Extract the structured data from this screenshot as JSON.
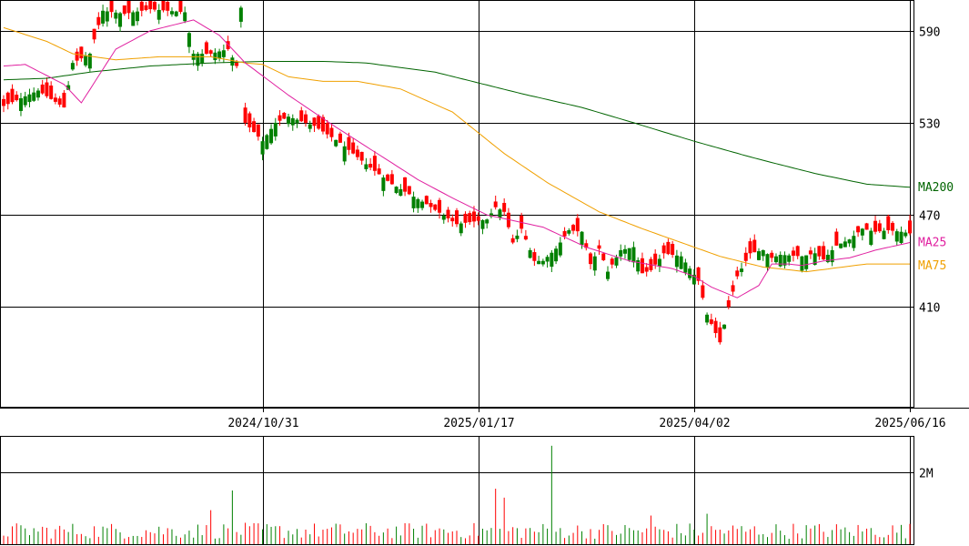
{
  "colors": {
    "up": "#008000",
    "down": "#ff0000",
    "ma25": "#e020a0",
    "ma75": "#f0a000",
    "ma200": "#006400",
    "grid": "#000000"
  },
  "chart_data": {
    "type": "candlestick",
    "price_axis": {
      "ylim": [
        345,
        610
      ],
      "ticks": [
        410,
        470,
        530,
        590
      ],
      "position": "right"
    },
    "x_axis_labels": [
      {
        "index": 60,
        "label": "2024/10/31"
      },
      {
        "index": 110,
        "label": "2025/01/17"
      },
      {
        "index": 160,
        "label": "2025/04/02"
      },
      {
        "index": 210,
        "label": "2025/06/16"
      }
    ],
    "legend": [
      {
        "name": "MA200",
        "color": "#006400"
      },
      {
        "name": "MA25",
        "color": "#e020a0"
      },
      {
        "name": "MA75",
        "color": "#f0a000"
      }
    ],
    "price_keypoints": [
      [
        0,
        541
      ],
      [
        8,
        551
      ],
      [
        14,
        540
      ],
      [
        16,
        569
      ],
      [
        20,
        575
      ],
      [
        23,
        603
      ],
      [
        28,
        601
      ],
      [
        34,
        604
      ],
      [
        42,
        602
      ],
      [
        44,
        575
      ],
      [
        48,
        575
      ],
      [
        52,
        578
      ],
      [
        54,
        567
      ],
      [
        55,
        605
      ],
      [
        56,
        530
      ],
      [
        60,
        518
      ],
      [
        63,
        530
      ],
      [
        66,
        534
      ],
      [
        72,
        528
      ],
      [
        78,
        517
      ],
      [
        84,
        503
      ],
      [
        90,
        490
      ],
      [
        98,
        477
      ],
      [
        105,
        464
      ],
      [
        112,
        467
      ],
      [
        114,
        475
      ],
      [
        116,
        472
      ],
      [
        118,
        452
      ],
      [
        120,
        461
      ],
      [
        123,
        440
      ],
      [
        125,
        440
      ],
      [
        128,
        448
      ],
      [
        131,
        460
      ],
      [
        134,
        459
      ],
      [
        136,
        438
      ],
      [
        138,
        448
      ],
      [
        140,
        433
      ],
      [
        143,
        447
      ],
      [
        146,
        449
      ],
      [
        148,
        432
      ],
      [
        150,
        434
      ],
      [
        153,
        445
      ],
      [
        157,
        443
      ],
      [
        161,
        427
      ],
      [
        163,
        405
      ],
      [
        166,
        387
      ],
      [
        168,
        410
      ],
      [
        170,
        430
      ],
      [
        173,
        445
      ],
      [
        176,
        447
      ],
      [
        178,
        442
      ],
      [
        180,
        444
      ],
      [
        185,
        443
      ],
      [
        188,
        445
      ],
      [
        190,
        441
      ],
      [
        193,
        450
      ],
      [
        196,
        454
      ],
      [
        199,
        461
      ],
      [
        202,
        459
      ],
      [
        205,
        460
      ],
      [
        208,
        459
      ],
      [
        210,
        458
      ]
    ],
    "ma25_keypoints": [
      [
        0,
        567
      ],
      [
        5,
        568
      ],
      [
        14,
        555
      ],
      [
        18,
        543
      ],
      [
        26,
        578
      ],
      [
        34,
        590
      ],
      [
        44,
        597
      ],
      [
        50,
        587
      ],
      [
        56,
        569
      ],
      [
        66,
        548
      ],
      [
        76,
        529
      ],
      [
        86,
        511
      ],
      [
        96,
        493
      ],
      [
        104,
        481
      ],
      [
        112,
        470
      ],
      [
        125,
        462
      ],
      [
        135,
        449
      ],
      [
        145,
        440
      ],
      [
        155,
        435
      ],
      [
        160,
        430
      ],
      [
        164,
        423
      ],
      [
        170,
        416
      ],
      [
        175,
        424
      ],
      [
        178,
        438
      ],
      [
        182,
        438
      ],
      [
        185,
        437
      ],
      [
        190,
        440
      ],
      [
        196,
        442
      ],
      [
        202,
        447
      ],
      [
        210,
        452
      ]
    ],
    "ma75_keypoints": [
      [
        0,
        592
      ],
      [
        10,
        583
      ],
      [
        16,
        575
      ],
      [
        26,
        571
      ],
      [
        36,
        573
      ],
      [
        48,
        573
      ],
      [
        56,
        569
      ],
      [
        60,
        568
      ],
      [
        66,
        560
      ],
      [
        74,
        557
      ],
      [
        82,
        557
      ],
      [
        92,
        552
      ],
      [
        104,
        537
      ],
      [
        116,
        510
      ],
      [
        126,
        491
      ],
      [
        138,
        472
      ],
      [
        148,
        461
      ],
      [
        158,
        451
      ],
      [
        166,
        443
      ],
      [
        176,
        436
      ],
      [
        186,
        433
      ],
      [
        200,
        438
      ],
      [
        210,
        438
      ]
    ],
    "ma200_keypoints": [
      [
        0,
        558
      ],
      [
        10,
        559
      ],
      [
        20,
        563
      ],
      [
        34,
        567
      ],
      [
        48,
        569
      ],
      [
        60,
        570
      ],
      [
        74,
        570
      ],
      [
        84,
        569
      ],
      [
        100,
        563
      ],
      [
        120,
        549
      ],
      [
        134,
        540
      ],
      [
        146,
        530
      ],
      [
        160,
        518
      ],
      [
        174,
        507
      ],
      [
        188,
        497
      ],
      [
        200,
        490
      ],
      [
        210,
        488
      ]
    ],
    "volume_axis": {
      "ylim": [
        0,
        3.0
      ],
      "ticks": [
        2
      ],
      "tick_labels": [
        "2M"
      ]
    },
    "volume_spikes": [
      [
        48,
        0.95
      ],
      [
        53,
        1.5
      ],
      [
        114,
        1.55
      ],
      [
        116,
        1.3
      ],
      [
        127,
        2.75
      ],
      [
        150,
        0.8
      ],
      [
        163,
        0.85
      ]
    ]
  }
}
